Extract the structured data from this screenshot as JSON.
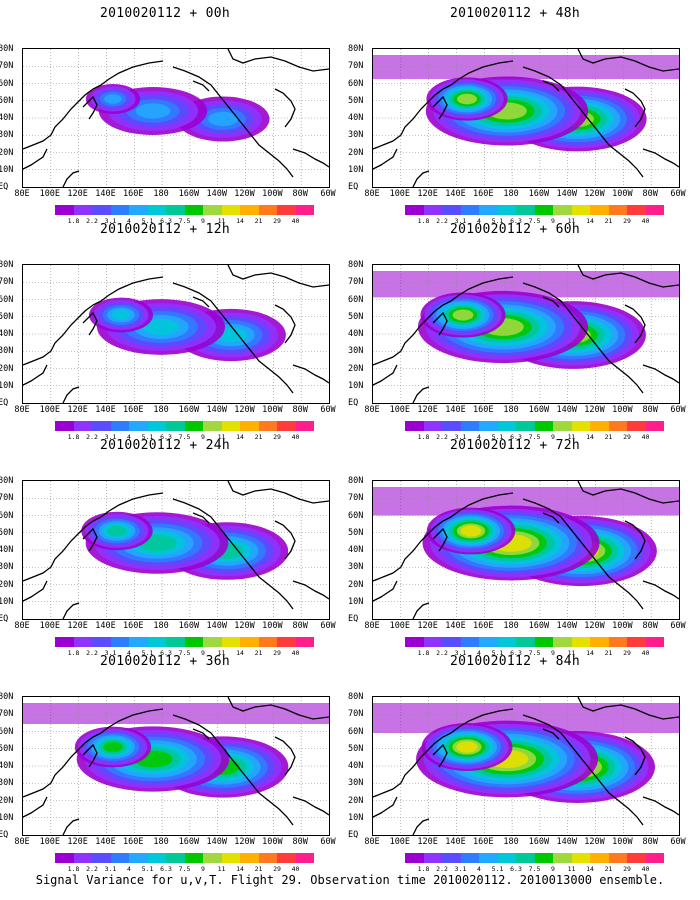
{
  "caption": "Signal Variance for u,v,T. Flight 29. Observation time 2010020112. 2010013000 ensemble.",
  "panels": [
    {
      "title": "2010020112 + 00h",
      "intensity": 0.25
    },
    {
      "title": "2010020112 + 48h",
      "intensity": 0.8
    },
    {
      "title": "2010020112 + 12h",
      "intensity": 0.45
    },
    {
      "title": "2010020112 + 60h",
      "intensity": 0.88
    },
    {
      "title": "2010020112 + 24h",
      "intensity": 0.6
    },
    {
      "title": "2010020112 + 72h",
      "intensity": 0.95
    },
    {
      "title": "2010020112 + 36h",
      "intensity": 0.7
    },
    {
      "title": "2010020112 + 84h",
      "intensity": 1.0
    }
  ],
  "y_labels": [
    "80N",
    "70N",
    "60N",
    "50N",
    "40N",
    "30N",
    "20N",
    "10N",
    "EQ"
  ],
  "x_labels": [
    "80E",
    "100E",
    "120E",
    "140E",
    "160E",
    "180",
    "160W",
    "140W",
    "120W",
    "100W",
    "80W",
    "60W"
  ],
  "colorbar": {
    "labels": [
      "1.8",
      "2.2",
      "3.1",
      "4",
      "5.1",
      "6.3",
      "7.5",
      "9",
      "11",
      "14",
      "21",
      "29",
      "40"
    ],
    "colors": [
      "#9b00d0",
      "#8f33ff",
      "#5a4dff",
      "#2f7dff",
      "#22a8ff",
      "#00c8d8",
      "#00c896",
      "#00c800",
      "#a0d840",
      "#e4e000",
      "#ffb000",
      "#ff7a1e",
      "#ff3b3b",
      "#ff1e8c"
    ]
  }
}
